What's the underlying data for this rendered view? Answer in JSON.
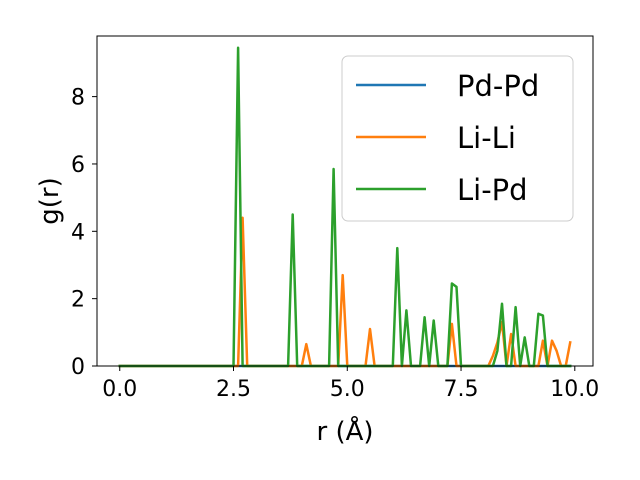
{
  "chart_data": {
    "type": "line",
    "xlabel": "r (Å)",
    "ylabel": "g(r)",
    "xlim": [
      -0.5,
      10.4
    ],
    "ylim": [
      0,
      9.8
    ],
    "xticks": [
      0.0,
      2.5,
      5.0,
      7.5,
      10.0
    ],
    "xtick_labels": [
      "0.0",
      "2.5",
      "5.0",
      "7.5",
      "10.0"
    ],
    "yticks": [
      0,
      2,
      4,
      6,
      8
    ],
    "ytick_labels": [
      "0",
      "2",
      "4",
      "6",
      "8"
    ],
    "grid": false,
    "legend_position": "top-right",
    "series": [
      {
        "name": "Pd-Pd",
        "color": "#1f77b4",
        "x": [
          0.0,
          9.9
        ],
        "y": [
          0.0,
          0.0
        ]
      },
      {
        "name": "Li-Li",
        "color": "#ff7f0e",
        "x": [
          0.0,
          2.6,
          2.7,
          2.8,
          4.0,
          4.1,
          4.2,
          4.8,
          4.9,
          5.0,
          5.4,
          5.5,
          5.6,
          7.2,
          7.3,
          7.4,
          8.1,
          8.2,
          8.3,
          8.4,
          8.5,
          8.6,
          8.7,
          8.8,
          9.2,
          9.3,
          9.4,
          9.5,
          9.6,
          9.7,
          9.8,
          9.9
        ],
        "y": [
          0.0,
          0.0,
          4.4,
          0.0,
          0.0,
          0.65,
          0.0,
          0.0,
          2.7,
          0.0,
          0.0,
          1.1,
          0.0,
          0.0,
          1.25,
          0.0,
          0.0,
          0.3,
          0.7,
          1.3,
          0.0,
          0.95,
          0.0,
          0.0,
          0.0,
          0.75,
          0.0,
          0.75,
          0.45,
          0.0,
          0.0,
          0.7
        ]
      },
      {
        "name": "Li-Pd",
        "color": "#2ca02c",
        "x": [
          0.0,
          2.5,
          2.6,
          2.7,
          3.7,
          3.8,
          3.9,
          4.6,
          4.7,
          4.8,
          6.0,
          6.1,
          6.2,
          6.3,
          6.4,
          6.6,
          6.7,
          6.8,
          6.9,
          7.0,
          7.2,
          7.3,
          7.4,
          7.5,
          8.2,
          8.3,
          8.4,
          8.5,
          8.6,
          8.7,
          8.8,
          8.9,
          9.0,
          9.1,
          9.2,
          9.3,
          9.4,
          9.9
        ],
        "y": [
          0.0,
          0.0,
          9.45,
          0.0,
          0.0,
          4.5,
          0.0,
          0.0,
          5.85,
          0.0,
          0.0,
          3.5,
          0.0,
          1.65,
          0.0,
          0.0,
          1.45,
          0.0,
          1.35,
          0.0,
          0.0,
          2.45,
          2.35,
          0.0,
          0.0,
          0.45,
          1.85,
          0.0,
          0.0,
          1.75,
          0.0,
          0.85,
          0.0,
          0.0,
          1.55,
          1.5,
          0.0,
          0.0
        ]
      }
    ]
  }
}
